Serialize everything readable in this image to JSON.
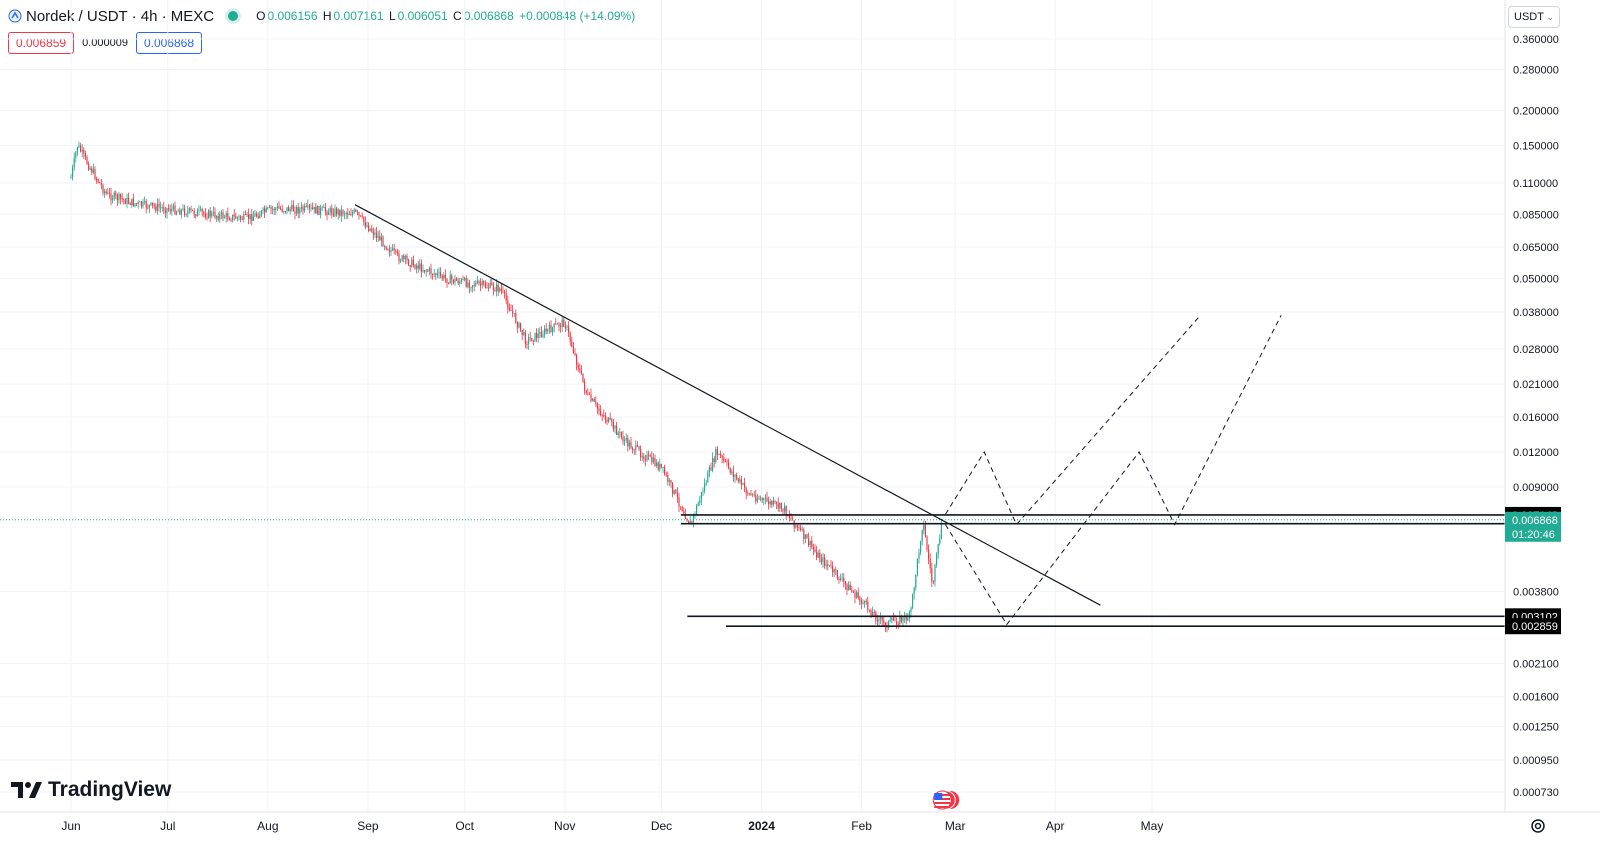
{
  "header": {
    "symbol": "Nordek / USDT · 4h · MEXC",
    "ohlc": {
      "o_label": "O",
      "o": "0.006156",
      "h_label": "H",
      "h": "0.007161",
      "l_label": "L",
      "l": "0.006051",
      "c_label": "C",
      "c": "0.006868",
      "change": "+0.000848 (+14.09%)"
    },
    "sell_price": "0.006859",
    "spread": "0.000009",
    "buy_price": "0.006868",
    "currency": "USDT"
  },
  "branding": {
    "name": "TradingView"
  },
  "colors": {
    "up": "#22ab94",
    "down": "#f23645",
    "line": "#131722",
    "grid": "#f0f3fa",
    "accent": "#2962ff"
  },
  "icons": [
    "tradingview-logo-icon",
    "live-status-icon",
    "chevron-down-icon",
    "us-flag-icon",
    "settings-gear-icon"
  ],
  "chart_data": {
    "type": "candlestick",
    "scale": "log",
    "y_ticks": [
      "0.360000",
      "0.280000",
      "0.200000",
      "0.150000",
      "0.110000",
      "0.085000",
      "0.065000",
      "0.050000",
      "0.038000",
      "0.028000",
      "0.021000",
      "0.016000",
      "0.012000",
      "0.009000",
      "0.006868",
      "0.003800",
      "0.002100",
      "0.001600",
      "0.001250",
      "0.000950",
      "0.000730"
    ],
    "x_ticks": [
      "Jun",
      "Jul",
      "Aug",
      "Sep",
      "Oct",
      "Nov",
      "Dec",
      "2024",
      "Feb",
      "Mar",
      "Apr",
      "May"
    ],
    "price_series": [
      {
        "date": "2023-06-01",
        "price": 0.115
      },
      {
        "date": "2023-06-03",
        "price": 0.15
      },
      {
        "date": "2023-06-06",
        "price": 0.13
      },
      {
        "date": "2023-06-12",
        "price": 0.1
      },
      {
        "date": "2023-06-22",
        "price": 0.092
      },
      {
        "date": "2023-07-10",
        "price": 0.086
      },
      {
        "date": "2023-07-25",
        "price": 0.082
      },
      {
        "date": "2023-08-03",
        "price": 0.089
      },
      {
        "date": "2023-08-15",
        "price": 0.088
      },
      {
        "date": "2023-08-28",
        "price": 0.086
      },
      {
        "date": "2023-09-10",
        "price": 0.06
      },
      {
        "date": "2023-09-25",
        "price": 0.05
      },
      {
        "date": "2023-10-12",
        "price": 0.046
      },
      {
        "date": "2023-10-20",
        "price": 0.03
      },
      {
        "date": "2023-11-01",
        "price": 0.035
      },
      {
        "date": "2023-11-08",
        "price": 0.019
      },
      {
        "date": "2023-11-20",
        "price": 0.013
      },
      {
        "date": "2023-12-01",
        "price": 0.0105
      },
      {
        "date": "2023-12-10",
        "price": 0.0066
      },
      {
        "date": "2023-12-18",
        "price": 0.012
      },
      {
        "date": "2023-12-28",
        "price": 0.0085
      },
      {
        "date": "2024-01-08",
        "price": 0.0075
      },
      {
        "date": "2024-01-18",
        "price": 0.0052
      },
      {
        "date": "2024-01-30",
        "price": 0.0037
      },
      {
        "date": "2024-02-08",
        "price": 0.0029
      },
      {
        "date": "2024-02-16",
        "price": 0.0031
      },
      {
        "date": "2024-02-20",
        "price": 0.0068
      },
      {
        "date": "2024-02-23",
        "price": 0.004
      },
      {
        "date": "2024-02-26",
        "price": 0.006868
      }
    ],
    "levels": [
      {
        "price": "0.007148",
        "value": 0.007148
      },
      {
        "price": "0.006649",
        "value": 0.006649
      },
      {
        "price": "0.003102",
        "value": 0.003102
      },
      {
        "price": "0.002859",
        "value": 0.002859
      }
    ],
    "current_price": {
      "price": "0.006868",
      "countdown": "01:20:46"
    },
    "trendline": {
      "from": {
        "date": "2023-08-28",
        "price": 0.092
      },
      "to": {
        "date": "2024-04-15",
        "price": 0.0034
      }
    },
    "projection_paths": [
      [
        {
          "date": "2024-02-27",
          "price": 0.0072
        },
        {
          "date": "2024-03-10",
          "price": 0.012
        },
        {
          "date": "2024-03-20",
          "price": 0.0066
        },
        {
          "date": "2024-05-16",
          "price": 0.037
        }
      ],
      [
        {
          "date": "2024-02-27",
          "price": 0.0066
        },
        {
          "date": "2024-03-17",
          "price": 0.0029
        },
        {
          "date": "2024-04-27",
          "price": 0.012
        },
        {
          "date": "2024-05-08",
          "price": 0.0066
        },
        {
          "date": "2024-06-10",
          "price": 0.037
        }
      ]
    ]
  }
}
